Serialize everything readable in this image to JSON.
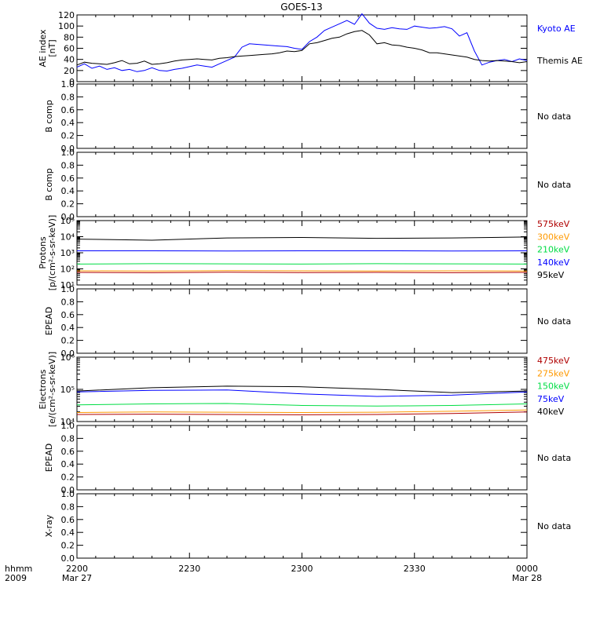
{
  "title": "GOES-13",
  "x_axis": {
    "ticks": [
      {
        "label": "2200",
        "sublabel": "Mar 27",
        "t": 0
      },
      {
        "label": "2230",
        "sublabel": "",
        "t": 30
      },
      {
        "label": "2300",
        "sublabel": "",
        "t": 60
      },
      {
        "label": "2330",
        "sublabel": "",
        "t": 90
      },
      {
        "label": "0000",
        "sublabel": "Mar 28",
        "t": 120
      }
    ],
    "corner_label_top": "hhmm",
    "corner_label_bottom": "2009",
    "range": [
      0,
      120
    ]
  },
  "no_data_text": "No data",
  "colors": {
    "black": "#000000",
    "blue": "#0000ff",
    "red": "#b00000",
    "orange": "#ff9900",
    "green": "#00dd44"
  },
  "chart_data": [
    {
      "id": "ae",
      "type": "line",
      "ylabel": [
        "AE index",
        "[nT]"
      ],
      "ylim": [
        0,
        120
      ],
      "yticks": [
        0,
        20,
        40,
        60,
        80,
        100,
        120
      ],
      "log": false,
      "has_data": true,
      "series": [
        {
          "name": "Kyoto AE",
          "color": "#0000ff",
          "x": [
            0,
            2,
            4,
            6,
            8,
            10,
            12,
            14,
            16,
            18,
            20,
            22,
            24,
            26,
            28,
            30,
            32,
            34,
            36,
            38,
            40,
            42,
            44,
            46,
            48,
            50,
            52,
            54,
            56,
            58,
            60,
            62,
            64,
            66,
            68,
            70,
            72,
            74,
            76,
            78,
            80,
            82,
            84,
            86,
            88,
            90,
            92,
            94,
            96,
            98,
            100,
            102,
            104,
            106,
            108,
            110,
            112,
            114,
            116,
            118,
            120
          ],
          "y": [
            26,
            32,
            24,
            28,
            22,
            25,
            20,
            22,
            18,
            20,
            25,
            20,
            19,
            22,
            24,
            27,
            30,
            28,
            26,
            32,
            38,
            44,
            62,
            68,
            67,
            66,
            65,
            64,
            63,
            60,
            58,
            72,
            80,
            92,
            98,
            104,
            110,
            103,
            122,
            105,
            96,
            94,
            97,
            95,
            94,
            100,
            98,
            96,
            97,
            99,
            95,
            82,
            88,
            55,
            30,
            35,
            38,
            40,
            36,
            41,
            38
          ]
        },
        {
          "name": "Themis AE",
          "color": "#000000",
          "x": [
            0,
            2,
            4,
            6,
            8,
            10,
            12,
            14,
            16,
            18,
            20,
            22,
            24,
            26,
            28,
            30,
            32,
            34,
            36,
            38,
            40,
            42,
            44,
            46,
            48,
            50,
            52,
            54,
            56,
            58,
            60,
            62,
            64,
            66,
            68,
            70,
            72,
            74,
            76,
            78,
            80,
            82,
            84,
            86,
            88,
            90,
            92,
            94,
            96,
            98,
            100,
            102,
            104,
            106,
            108,
            110,
            112,
            114,
            116,
            118,
            120
          ],
          "y": [
            30,
            35,
            33,
            32,
            31,
            34,
            38,
            32,
            33,
            37,
            31,
            32,
            34,
            37,
            39,
            40,
            41,
            40,
            39,
            42,
            43,
            45,
            46,
            47,
            48,
            49,
            50,
            52,
            55,
            54,
            56,
            68,
            70,
            74,
            78,
            80,
            86,
            90,
            92,
            84,
            68,
            70,
            66,
            65,
            62,
            60,
            57,
            52,
            52,
            50,
            48,
            46,
            44,
            40,
            38,
            37,
            38,
            37,
            36,
            34,
            36
          ]
        }
      ]
    },
    {
      "id": "b1",
      "type": "line",
      "ylabel": [
        "B comp"
      ],
      "ylim": [
        0,
        1
      ],
      "yticks": [
        0.0,
        0.2,
        0.4,
        0.6,
        0.8,
        1.0
      ],
      "ytick_labels": [
        "0.0",
        "0.2",
        "0.4",
        "0.6",
        "0.8",
        "1.0"
      ],
      "log": false,
      "has_data": false,
      "series": []
    },
    {
      "id": "b2",
      "type": "line",
      "ylabel": [
        "B comp"
      ],
      "ylim": [
        0,
        1
      ],
      "yticks": [
        0.0,
        0.2,
        0.4,
        0.6,
        0.8,
        1.0
      ],
      "ytick_labels": [
        "0.0",
        "0.2",
        "0.4",
        "0.6",
        "0.8",
        "1.0"
      ],
      "log": false,
      "has_data": false,
      "series": []
    },
    {
      "id": "protons",
      "type": "line",
      "ylabel": [
        "Protons",
        "[p/(cm²-s-sr-keV)]"
      ],
      "ylim": [
        1,
        5
      ],
      "log": true,
      "yticks": [
        1,
        2,
        3,
        4,
        5
      ],
      "ytick_labels": [
        "10¹",
        "10²",
        "10³",
        "10⁴",
        "10⁵"
      ],
      "has_data": true,
      "series": [
        {
          "name": "575keV",
          "color": "#b00000",
          "x": [
            0,
            20,
            40,
            60,
            80,
            100,
            120
          ],
          "y": [
            1.78,
            1.76,
            1.79,
            1.77,
            1.78,
            1.76,
            1.78
          ]
        },
        {
          "name": "300keV",
          "color": "#ff9900",
          "x": [
            0,
            20,
            40,
            60,
            80,
            100,
            120
          ],
          "y": [
            1.88,
            1.87,
            1.89,
            1.88,
            1.87,
            1.88,
            1.87
          ]
        },
        {
          "name": "210keV",
          "color": "#00dd44",
          "x": [
            0,
            20,
            40,
            60,
            80,
            100,
            120
          ],
          "y": [
            2.3,
            2.32,
            2.31,
            2.3,
            2.32,
            2.31,
            2.3
          ]
        },
        {
          "name": "140keV",
          "color": "#0000ff",
          "x": [
            0,
            20,
            40,
            60,
            80,
            100,
            120
          ],
          "y": [
            3.12,
            3.12,
            3.11,
            3.12,
            3.12,
            3.11,
            3.12
          ]
        },
        {
          "name": "95keV",
          "color": "#000000",
          "x": [
            0,
            20,
            40,
            60,
            80,
            100,
            120
          ],
          "y": [
            3.85,
            3.78,
            3.92,
            3.95,
            3.9,
            3.92,
            3.98
          ]
        }
      ]
    },
    {
      "id": "epead1",
      "type": "line",
      "ylabel": [
        "EPEAD"
      ],
      "ylim": [
        0,
        1
      ],
      "yticks": [
        0.0,
        0.2,
        0.4,
        0.6,
        0.8,
        1.0
      ],
      "ytick_labels": [
        "0.0",
        "0.2",
        "0.4",
        "0.6",
        "0.8",
        "1.0"
      ],
      "log": false,
      "has_data": false,
      "series": []
    },
    {
      "id": "electrons",
      "type": "line",
      "ylabel": [
        "Electrons",
        "[e/(cm²-s-sr-keV)]"
      ],
      "ylim": [
        4,
        6
      ],
      "log": true,
      "yticks": [
        4,
        5,
        6
      ],
      "ytick_labels": [
        "10⁴",
        "10⁵",
        "10⁶"
      ],
      "has_data": true,
      "series": [
        {
          "name": "475keV",
          "color": "#b00000",
          "x": [
            0,
            20,
            40,
            60,
            80,
            100,
            120
          ],
          "y": [
            4.22,
            4.23,
            4.22,
            4.21,
            4.22,
            4.25,
            4.3
          ]
        },
        {
          "name": "275keV",
          "color": "#ff9900",
          "x": [
            0,
            20,
            40,
            60,
            80,
            100,
            120
          ],
          "y": [
            4.28,
            4.3,
            4.29,
            4.28,
            4.29,
            4.32,
            4.36
          ]
        },
        {
          "name": "150keV",
          "color": "#00dd44",
          "x": [
            0,
            20,
            40,
            60,
            80,
            100,
            120
          ],
          "y": [
            4.52,
            4.55,
            4.56,
            4.5,
            4.48,
            4.5,
            4.55
          ]
        },
        {
          "name": "75keV",
          "color": "#0000ff",
          "x": [
            0,
            20,
            40,
            60,
            80,
            100,
            120
          ],
          "y": [
            4.92,
            4.97,
            4.98,
            4.86,
            4.78,
            4.82,
            4.92
          ]
        },
        {
          "name": "40keV",
          "color": "#000000",
          "x": [
            0,
            20,
            40,
            60,
            80,
            100,
            120
          ],
          "y": [
            4.95,
            5.05,
            5.1,
            5.08,
            5.0,
            4.9,
            4.95
          ]
        }
      ]
    },
    {
      "id": "epead2",
      "type": "line",
      "ylabel": [
        "EPEAD"
      ],
      "ylim": [
        0,
        1
      ],
      "yticks": [
        0.0,
        0.2,
        0.4,
        0.6,
        0.8,
        1.0
      ],
      "ytick_labels": [
        "0.0",
        "0.2",
        "0.4",
        "0.6",
        "0.8",
        "1.0"
      ],
      "log": false,
      "has_data": false,
      "series": []
    },
    {
      "id": "xray",
      "type": "line",
      "ylabel": [
        "X-ray"
      ],
      "ylim": [
        0,
        1
      ],
      "yticks": [
        0.0,
        0.2,
        0.4,
        0.6,
        0.8,
        1.0
      ],
      "ytick_labels": [
        "0.0",
        "0.2",
        "0.4",
        "0.6",
        "0.8",
        "1.0"
      ],
      "log": false,
      "has_data": false,
      "series": []
    }
  ]
}
